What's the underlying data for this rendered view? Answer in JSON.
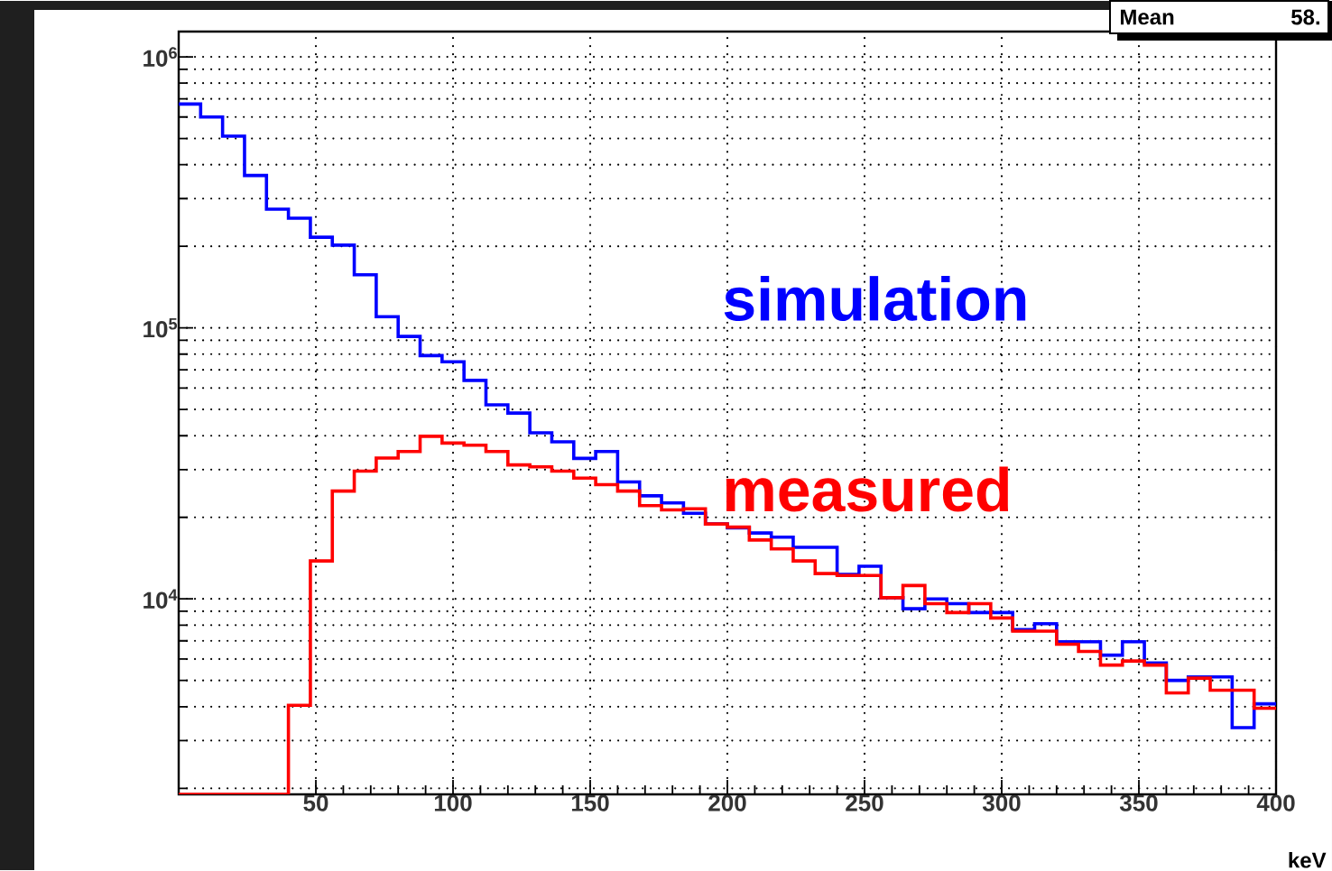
{
  "chart_data": {
    "type": "histogram",
    "xlabel": "keV",
    "annotations": [
      "Mean",
      "58."
    ],
    "bins": [
      0,
      8,
      16,
      24,
      32,
      40,
      48,
      56,
      64,
      72,
      80,
      88,
      96,
      104,
      112,
      120,
      128,
      136,
      144,
      152,
      160,
      168,
      176,
      184,
      192,
      200,
      208,
      216,
      224,
      232,
      240,
      248,
      256,
      264,
      272,
      280,
      288,
      296,
      304,
      312,
      320,
      328,
      336,
      344,
      352,
      360,
      368,
      376,
      384,
      392,
      400
    ],
    "series": [
      {
        "name": "simulation",
        "color": "#0000ff",
        "values": [
          670000,
          600000,
          510000,
          365000,
          274000,
          254000,
          216000,
          202000,
          157000,
          110000,
          93000,
          79000,
          75000,
          64000,
          52000,
          48500,
          41000,
          38000,
          33000,
          35000,
          27000,
          24000,
          22600,
          20700,
          18900,
          18300,
          17500,
          16900,
          15500,
          15500,
          12300,
          13200,
          10100,
          9200,
          10000,
          9600,
          8900,
          8900,
          7700,
          8100,
          6950,
          6950,
          6200,
          6950,
          5800,
          5000,
          5150,
          5150,
          3350,
          4100
        ]
      },
      {
        "name": "measured",
        "color": "#ff0000",
        "values": [
          null,
          null,
          null,
          null,
          null,
          4050,
          13800,
          25000,
          29600,
          33100,
          35000,
          39800,
          37600,
          36900,
          35000,
          31200,
          30700,
          29600,
          27900,
          26400,
          25000,
          22100,
          21300,
          21500,
          18900,
          18400,
          16500,
          15300,
          13800,
          12400,
          12200,
          12200,
          10100,
          11200,
          9600,
          8900,
          9600,
          8500,
          7600,
          7600,
          6800,
          6400,
          5700,
          5900,
          5700,
          4500,
          5100,
          4600,
          4600,
          3950
        ]
      }
    ],
    "xlim": [
      0,
      400
    ],
    "xticks": [
      50,
      100,
      150,
      200,
      250,
      300,
      350,
      400
    ],
    "log": "y",
    "ylim": [
      1900,
      1240000
    ],
    "yticks": [
      {
        "value": 2000,
        "label": null
      },
      {
        "value": 3000,
        "label": null
      },
      {
        "value": 4000,
        "label": null
      },
      {
        "value": 5000,
        "label": null
      },
      {
        "value": 6000,
        "label": null
      },
      {
        "value": 7000,
        "label": null
      },
      {
        "value": 8000,
        "label": null
      },
      {
        "value": 9000,
        "label": null
      },
      {
        "value": 10000,
        "label": "10$^{4}$"
      },
      {
        "value": 20000,
        "label": null
      },
      {
        "value": 30000,
        "label": null
      },
      {
        "value": 40000,
        "label": null
      },
      {
        "value": 50000,
        "label": null
      },
      {
        "value": 60000,
        "label": null
      },
      {
        "value": 70000,
        "label": null
      },
      {
        "value": 80000,
        "label": null
      },
      {
        "value": 90000,
        "label": null
      },
      {
        "value": 100000,
        "label": "10$^{5}$"
      },
      {
        "value": 200000,
        "label": null
      },
      {
        "value": 300000,
        "label": null
      },
      {
        "value": 400000,
        "label": null
      },
      {
        "value": 500000,
        "label": null
      },
      {
        "value": 600000,
        "label": null
      },
      {
        "value": 700000,
        "label": null
      },
      {
        "value": 800000,
        "label": null
      },
      {
        "value": 900000,
        "label": null
      },
      {
        "value": 1000000,
        "label": "10$^{6}$"
      }
    ],
    "grid": true,
    "legend": false
  }
}
